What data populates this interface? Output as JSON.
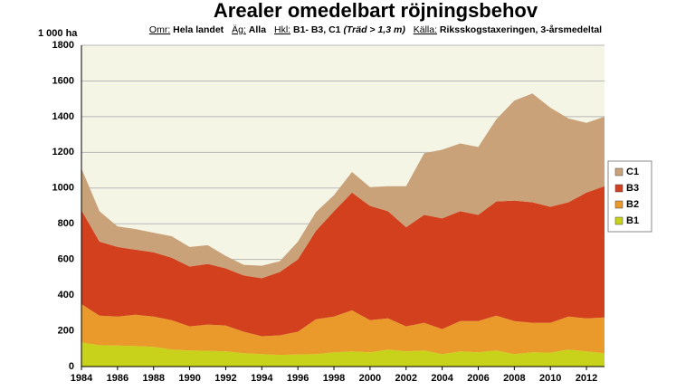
{
  "chart_data": {
    "type": "stacked_area",
    "title": "Arealer omedelbart röjningsbehov",
    "subtitle": [
      "Omr:",
      "Hela landet",
      "Äg:",
      "Alla",
      "Hkl:",
      "B1- B3, C1",
      "(Träd > 1,3 m)",
      "Källa:",
      "Riksskogstaxeringen, 3-årsmedeltal"
    ],
    "y_label": "1 000 ha",
    "x": [
      1984,
      1985,
      1986,
      1987,
      1988,
      1989,
      1990,
      1991,
      1992,
      1993,
      1994,
      1995,
      1996,
      1997,
      1998,
      1999,
      2000,
      2001,
      2002,
      2003,
      2004,
      2005,
      2006,
      2007,
      2008,
      2009,
      2010,
      2011,
      2012,
      2013
    ],
    "series": [
      {
        "name": "B1",
        "color": "#c9d21a",
        "values": [
          135,
          120,
          118,
          115,
          110,
          95,
          90,
          88,
          85,
          75,
          70,
          65,
          68,
          70,
          80,
          85,
          80,
          95,
          85,
          90,
          70,
          85,
          80,
          90,
          70,
          80,
          78,
          95,
          85,
          75
        ]
      },
      {
        "name": "B2",
        "color": "#e99a2a",
        "values": [
          215,
          165,
          162,
          175,
          170,
          165,
          135,
          147,
          145,
          120,
          100,
          110,
          127,
          195,
          200,
          230,
          180,
          175,
          140,
          155,
          140,
          170,
          175,
          195,
          185,
          165,
          167,
          185,
          185,
          200
        ]
      },
      {
        "name": "B3",
        "color": "#d2401e",
        "values": [
          525,
          415,
          390,
          365,
          360,
          350,
          335,
          340,
          320,
          315,
          325,
          355,
          405,
          495,
          590,
          660,
          640,
          600,
          555,
          605,
          620,
          615,
          595,
          640,
          675,
          675,
          650,
          640,
          705,
          735
        ]
      },
      {
        "name": "C1",
        "color": "#c9a27a",
        "values": [
          235,
          170,
          115,
          115,
          110,
          120,
          110,
          105,
          70,
          60,
          70,
          60,
          100,
          105,
          90,
          115,
          105,
          140,
          230,
          345,
          385,
          380,
          380,
          460,
          560,
          610,
          555,
          470,
          390,
          390
        ]
      }
    ],
    "xlim": [
      1984,
      2013
    ],
    "xticks": [
      1984,
      1986,
      1988,
      1990,
      1992,
      1994,
      1996,
      1998,
      2000,
      2002,
      2004,
      2006,
      2008,
      2010,
      2012
    ],
    "ylim": [
      0,
      1800
    ],
    "yticks": [
      0,
      200,
      400,
      600,
      800,
      1000,
      1200,
      1400,
      1600,
      1800
    ],
    "grid": true,
    "legend": "right"
  }
}
